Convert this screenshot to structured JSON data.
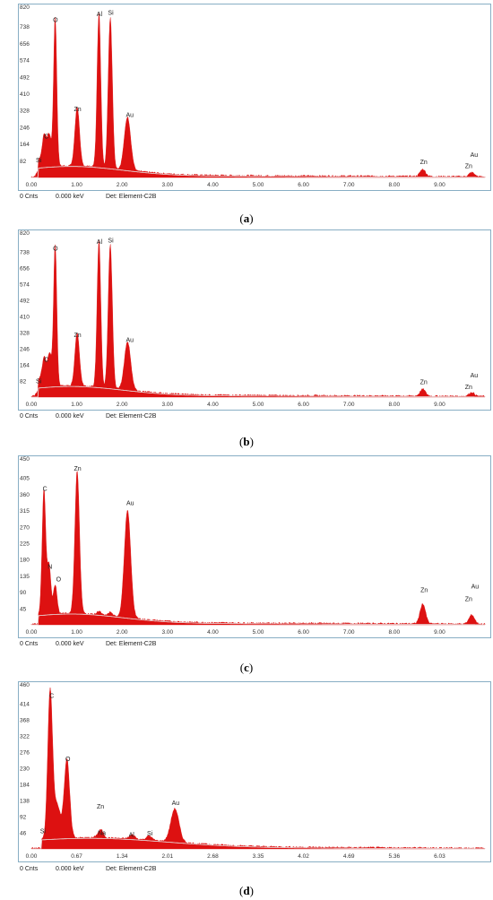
{
  "chart_data": [
    {
      "id": "a",
      "type": "area",
      "caption": "a",
      "footer": {
        "counts": "0 Cnts",
        "energy": "0.000 keV",
        "detector": "Det: Element-C2B"
      },
      "y_top_label": "820",
      "yticks": [
        "82",
        "164",
        "246",
        "328",
        "410",
        "492",
        "574",
        "656",
        "738"
      ],
      "ylim": [
        0,
        820
      ],
      "xticks": [
        "0.00",
        "1.00",
        "2.00",
        "3.00",
        "4.00",
        "5.00",
        "6.00",
        "7.00",
        "8.00",
        "9.00"
      ],
      "xlim": [
        0,
        10
      ],
      "peaks": [
        {
          "x": 0.18,
          "h": 40,
          "w": 0.05
        },
        {
          "x": 0.28,
          "h": 145,
          "w": 0.04
        },
        {
          "x": 0.39,
          "h": 160,
          "w": 0.05
        },
        {
          "x": 0.525,
          "h": 730,
          "w": 0.035
        },
        {
          "x": 1.01,
          "h": 290,
          "w": 0.05
        },
        {
          "x": 1.49,
          "h": 760,
          "w": 0.04
        },
        {
          "x": 1.74,
          "h": 740,
          "w": 0.045
        },
        {
          "x": 2.12,
          "h": 260,
          "w": 0.07
        },
        {
          "x": 8.63,
          "h": 35,
          "w": 0.06
        },
        {
          "x": 9.71,
          "h": 20,
          "w": 0.06
        }
      ],
      "labels": [
        {
          "text": "O",
          "x": 0.53,
          "y": 760
        },
        {
          "text": "Al",
          "x": 1.5,
          "y": 790
        },
        {
          "text": "Si",
          "x": 1.75,
          "y": 795
        },
        {
          "text": "Zn",
          "x": 1.02,
          "y": 325
        },
        {
          "text": "Au",
          "x": 2.17,
          "y": 295
        },
        {
          "text": "C",
          "x": 0.33,
          "y": 190
        },
        {
          "text": "Si",
          "x": 0.16,
          "y": 75
        },
        {
          "text": "Zn",
          "x": 8.65,
          "y": 65
        },
        {
          "text": "Au",
          "x": 9.76,
          "y": 100
        },
        {
          "text": "Zn",
          "x": 9.64,
          "y": 45
        }
      ]
    },
    {
      "id": "b",
      "type": "area",
      "caption": "b",
      "footer": {
        "counts": "0 Cnts",
        "energy": "0.000 keV",
        "detector": "Det: Element-C2B"
      },
      "y_top_label": "820",
      "yticks": [
        "82",
        "164",
        "246",
        "328",
        "410",
        "492",
        "574",
        "656",
        "738"
      ],
      "ylim": [
        0,
        820
      ],
      "xticks": [
        "0.00",
        "1.00",
        "2.00",
        "3.00",
        "4.00",
        "5.00",
        "6.00",
        "7.00",
        "8.00",
        "9.00"
      ],
      "xlim": [
        0,
        10
      ],
      "peaks": [
        {
          "x": 0.18,
          "h": 45,
          "w": 0.05
        },
        {
          "x": 0.28,
          "h": 140,
          "w": 0.04
        },
        {
          "x": 0.4,
          "h": 170,
          "w": 0.05
        },
        {
          "x": 0.525,
          "h": 720,
          "w": 0.035
        },
        {
          "x": 1.01,
          "h": 270,
          "w": 0.05
        },
        {
          "x": 1.49,
          "h": 750,
          "w": 0.04
        },
        {
          "x": 1.74,
          "h": 730,
          "w": 0.045
        },
        {
          "x": 2.12,
          "h": 245,
          "w": 0.07
        },
        {
          "x": 8.63,
          "h": 35,
          "w": 0.06
        },
        {
          "x": 9.71,
          "h": 20,
          "w": 0.06
        }
      ],
      "labels": [
        {
          "text": "O",
          "x": 0.53,
          "y": 745
        },
        {
          "text": "Al",
          "x": 1.5,
          "y": 780
        },
        {
          "text": "Si",
          "x": 1.75,
          "y": 785
        },
        {
          "text": "Zn",
          "x": 1.02,
          "y": 305
        },
        {
          "text": "Au",
          "x": 2.17,
          "y": 280
        },
        {
          "text": "C",
          "x": 0.33,
          "y": 180
        },
        {
          "text": "Si",
          "x": 0.16,
          "y": 70
        },
        {
          "text": "Zn",
          "x": 8.65,
          "y": 65
        },
        {
          "text": "Au",
          "x": 9.76,
          "y": 100
        },
        {
          "text": "Zn",
          "x": 9.64,
          "y": 40
        }
      ]
    },
    {
      "id": "c",
      "type": "area",
      "caption": "c",
      "footer": {
        "counts": "0 Cnts",
        "energy": "0.000 keV",
        "detector": "Det: Element-C2B"
      },
      "y_top_label": "450",
      "yticks": [
        "45",
        "90",
        "135",
        "180",
        "225",
        "270",
        "315",
        "360",
        "405"
      ],
      "ylim": [
        0,
        450
      ],
      "xticks": [
        "0.00",
        "1.00",
        "2.00",
        "3.00",
        "4.00",
        "5.00",
        "6.00",
        "7.00",
        "8.00",
        "9.00"
      ],
      "xlim": [
        0,
        10
      ],
      "peaks": [
        {
          "x": 0.277,
          "h": 345,
          "w": 0.04
        },
        {
          "x": 0.39,
          "h": 135,
          "w": 0.04
        },
        {
          "x": 0.525,
          "h": 80,
          "w": 0.04
        },
        {
          "x": 1.01,
          "h": 395,
          "w": 0.05
        },
        {
          "x": 1.49,
          "h": 10,
          "w": 0.04
        },
        {
          "x": 1.74,
          "h": 10,
          "w": 0.04
        },
        {
          "x": 2.12,
          "h": 295,
          "w": 0.07
        },
        {
          "x": 8.63,
          "h": 55,
          "w": 0.06
        },
        {
          "x": 9.71,
          "h": 25,
          "w": 0.06
        }
      ],
      "labels": [
        {
          "text": "C",
          "x": 0.3,
          "y": 370
        },
        {
          "text": "N",
          "x": 0.41,
          "y": 155
        },
        {
          "text": "O",
          "x": 0.6,
          "y": 120
        },
        {
          "text": "Zn",
          "x": 1.02,
          "y": 425
        },
        {
          "text": "Au",
          "x": 2.18,
          "y": 330
        },
        {
          "text": "Zn",
          "x": 8.66,
          "y": 90
        },
        {
          "text": "Au",
          "x": 9.78,
          "y": 100
        },
        {
          "text": "Zn",
          "x": 9.64,
          "y": 65
        }
      ]
    },
    {
      "id": "d",
      "type": "area",
      "caption": "d",
      "footer": {
        "counts": "0 Cnts",
        "energy": "0.000 keV",
        "detector": "Det: Element-C2B"
      },
      "y_top_label": "460",
      "yticks": [
        "46",
        "92",
        "138",
        "184",
        "230",
        "276",
        "322",
        "368",
        "414"
      ],
      "ylim": [
        0,
        460
      ],
      "xticks": [
        "0.00",
        "0.67",
        "1.34",
        "2.01",
        "2.68",
        "3.35",
        "4.02",
        "4.69",
        "5.36",
        "6.03"
      ],
      "xlim": [
        0,
        6.7
      ],
      "peaks": [
        {
          "x": 0.277,
          "h": 420,
          "w": 0.035
        },
        {
          "x": 0.38,
          "h": 95,
          "w": 0.05
        },
        {
          "x": 0.525,
          "h": 225,
          "w": 0.04
        },
        {
          "x": 1.01,
          "h": 15,
          "w": 0.04
        },
        {
          "x": 1.04,
          "h": 10,
          "w": 0.03
        },
        {
          "x": 1.49,
          "h": 12,
          "w": 0.04
        },
        {
          "x": 1.74,
          "h": 12,
          "w": 0.04
        },
        {
          "x": 2.12,
          "h": 95,
          "w": 0.06
        }
      ],
      "labels": [
        {
          "text": "C",
          "x": 0.3,
          "y": 430
        },
        {
          "text": "O",
          "x": 0.54,
          "y": 250
        },
        {
          "text": "Zn",
          "x": 1.02,
          "y": 115
        },
        {
          "text": "Na",
          "x": 1.04,
          "y": 40
        },
        {
          "text": "Al",
          "x": 1.48,
          "y": 35
        },
        {
          "text": "Si",
          "x": 1.75,
          "y": 38
        },
        {
          "text": "Au",
          "x": 2.13,
          "y": 125
        },
        {
          "text": "Si",
          "x": 0.17,
          "y": 45
        }
      ]
    }
  ],
  "colors": {
    "fill": "#dd1111",
    "frame": "#88aec4",
    "baseline": "#e8e8e8"
  }
}
